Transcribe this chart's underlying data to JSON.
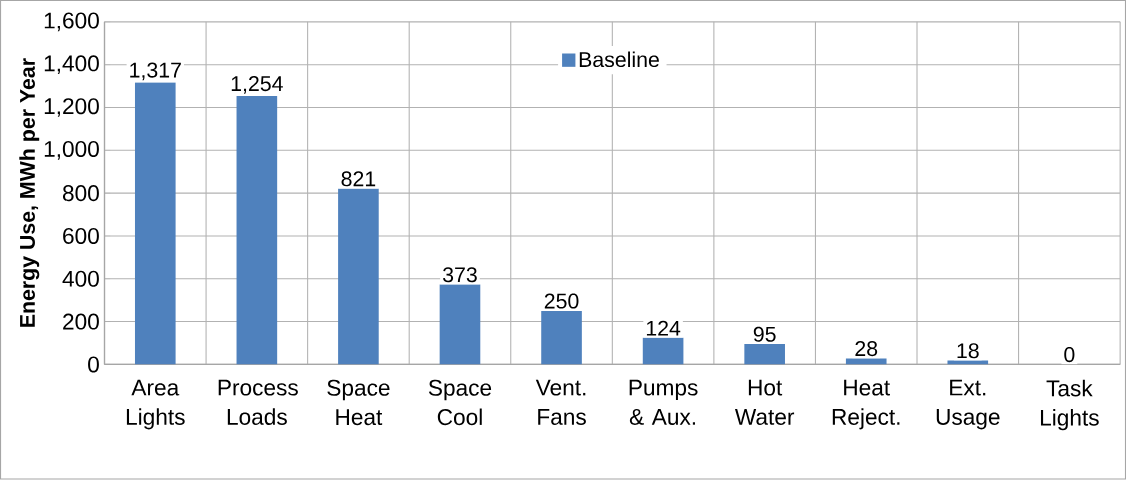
{
  "chart_data": {
    "type": "bar",
    "ylabel": "Energy Use, MWh per Year",
    "categories": [
      "Area Lights",
      "Process Loads",
      "Space Heat",
      "Space Cool",
      "Vent. Fans",
      "Pumps & Aux.",
      "Hot Water",
      "Heat Reject.",
      "Ext. Usage",
      "Task Lights"
    ],
    "series": [
      {
        "name": "Baseline",
        "color": "#4f81bd",
        "values": [
          1317,
          1254,
          821,
          373,
          250,
          124,
          95,
          28,
          18,
          0
        ],
        "value_labels": [
          "1,317",
          "1,254",
          "821",
          "373",
          "250",
          "124",
          "95",
          "28",
          "18",
          "0"
        ]
      }
    ],
    "ylim": [
      0,
      1600
    ],
    "yticks": [
      0,
      200,
      400,
      600,
      800,
      {
        "value": 1000,
        "label": "1,000"
      },
      {
        "value": 1200,
        "label": "1,200"
      },
      {
        "value": 1400,
        "label": "1,400"
      },
      {
        "value": 1600,
        "label": "1,600"
      }
    ],
    "grid": true,
    "legend": "top"
  }
}
